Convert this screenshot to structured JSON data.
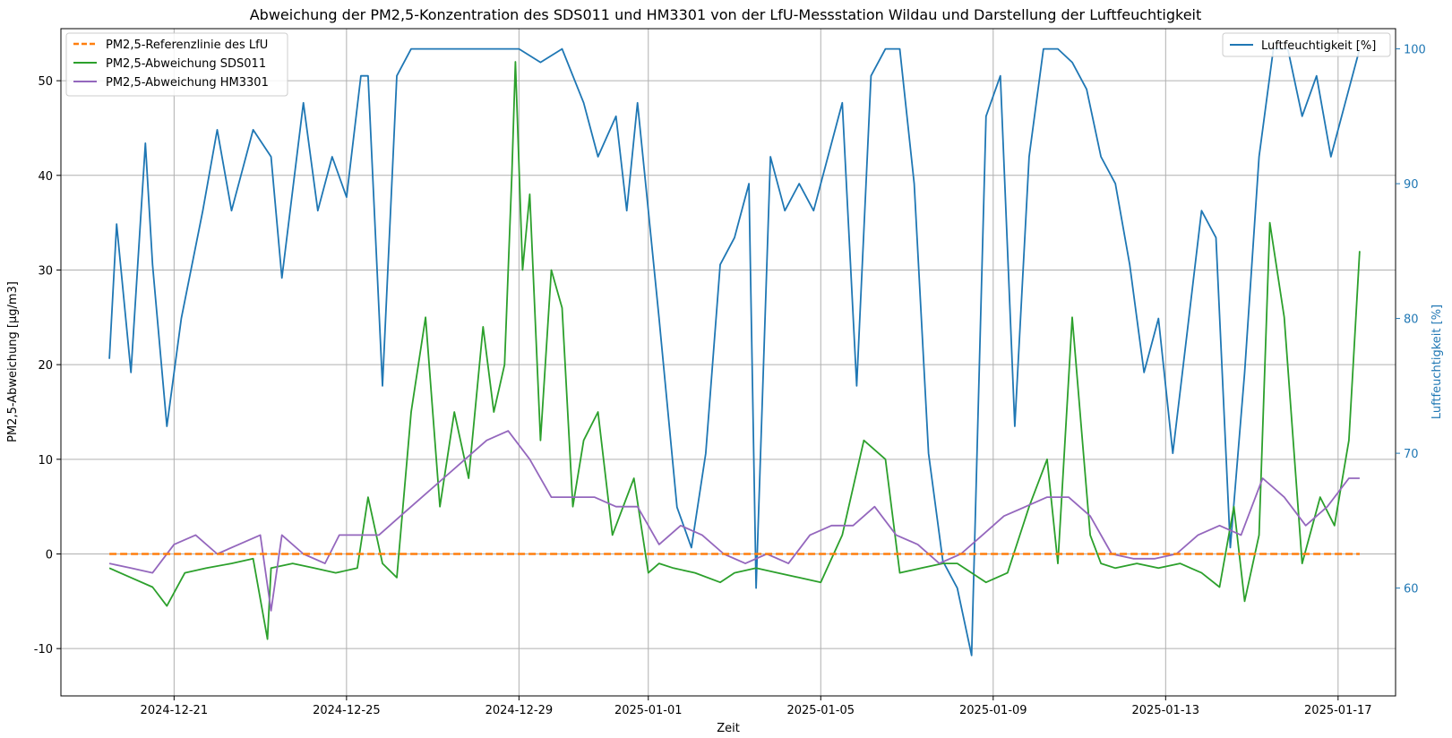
{
  "chart_data": {
    "type": "line",
    "title": "Abweichung der PM2,5-Konzentration des SDS011 und HM3301 von der LfU-Messstation Wildau und Darstellung der Luftfeuchtigkeit",
    "xlabel": "Zeit",
    "ylabel": "PM2,5-Abweichung [µg/m3]",
    "ylabel_right": "Luftfeuchtigkeit [%]",
    "x_ticks": [
      "2024-12-21",
      "2024-12-25",
      "2024-12-29",
      "2025-01-01",
      "2025-01-05",
      "2025-01-09",
      "2025-01-13",
      "2025-01-17"
    ],
    "x_range": [
      "2024-12-18T09:00",
      "2025-01-18T08:00"
    ],
    "y_ticks": [
      -10,
      0,
      10,
      20,
      30,
      40,
      50
    ],
    "ylim": [
      -15,
      55.5
    ],
    "y_ticks_right": [
      60,
      70,
      80,
      90,
      100
    ],
    "ylim_right": [
      52,
      101.5
    ],
    "grid": true,
    "legend_left_position": "upper-left",
    "legend_right_position": "upper-right",
    "colors": {
      "reference": "#ff7f0e",
      "sds011": "#2ca02c",
      "hm3301": "#9467bd",
      "humidity": "#1f77b4",
      "grid": "#b0b0b0"
    },
    "series": [
      {
        "name": "PM2,5-Referenzlinie des LfU",
        "axis": "left",
        "style": "dashed",
        "x": [
          "2024-12-19T12:00",
          "2025-01-17T12:00"
        ],
        "values": [
          0,
          0
        ]
      },
      {
        "name": "PM2,5-Abweichung SDS011",
        "axis": "left",
        "x": [
          "2024-12-19T12:00",
          "2024-12-20T00:00",
          "2024-12-20T12:00",
          "2024-12-20T20:00",
          "2024-12-21T06:00",
          "2024-12-21T18:00",
          "2024-12-22T08:00",
          "2024-12-22T20:00",
          "2024-12-23T04:00",
          "2024-12-23T06:00",
          "2024-12-23T18:00",
          "2024-12-24T06:00",
          "2024-12-24T18:00",
          "2024-12-25T06:00",
          "2024-12-25T12:00",
          "2024-12-25T20:00",
          "2024-12-26T04:00",
          "2024-12-26T12:00",
          "2024-12-26T20:00",
          "2024-12-27T04:00",
          "2024-12-27T12:00",
          "2024-12-27T20:00",
          "2024-12-28T04:00",
          "2024-12-28T10:00",
          "2024-12-28T16:00",
          "2024-12-28T20:00",
          "2024-12-28T22:00",
          "2024-12-29T02:00",
          "2024-12-29T06:00",
          "2024-12-29T12:00",
          "2024-12-29T18:00",
          "2024-12-30T00:00",
          "2024-12-30T06:00",
          "2024-12-30T12:00",
          "2024-12-30T20:00",
          "2024-12-31T04:00",
          "2024-12-31T10:00",
          "2024-12-31T16:00",
          "2025-01-01T00:00",
          "2025-01-01T06:00",
          "2025-01-01T14:00",
          "2025-01-02T02:00",
          "2025-01-02T16:00",
          "2025-01-03T00:00",
          "2025-01-03T12:00",
          "2025-01-04T00:00",
          "2025-01-04T12:00",
          "2025-01-05T00:00",
          "2025-01-05T12:00",
          "2025-01-06T00:00",
          "2025-01-06T12:00",
          "2025-01-06T20:00",
          "2025-01-07T08:00",
          "2025-01-07T20:00",
          "2025-01-08T04:00",
          "2025-01-08T12:00",
          "2025-01-08T20:00",
          "2025-01-09T08:00",
          "2025-01-09T20:00",
          "2025-01-10T06:00",
          "2025-01-10T12:00",
          "2025-01-10T20:00",
          "2025-01-11T06:00",
          "2025-01-11T12:00",
          "2025-01-11T20:00",
          "2025-01-12T08:00",
          "2025-01-12T20:00",
          "2025-01-13T08:00",
          "2025-01-13T20:00",
          "2025-01-14T06:00",
          "2025-01-14T14:00",
          "2025-01-14T20:00",
          "2025-01-15T04:00",
          "2025-01-15T10:00",
          "2025-01-15T18:00",
          "2025-01-16T04:00",
          "2025-01-16T14:00",
          "2025-01-16T22:00",
          "2025-01-17T06:00",
          "2025-01-17T12:00"
        ],
        "values": [
          -1.5,
          -2.5,
          -3.5,
          -5.5,
          -2,
          -1.5,
          -1,
          -0.5,
          -9,
          -1.5,
          -1,
          -1.5,
          -2,
          -1.5,
          6,
          -1,
          -2.5,
          15,
          25,
          5,
          15,
          8,
          24,
          15,
          20,
          40,
          52,
          30,
          38,
          12,
          30,
          26,
          5,
          12,
          15,
          2,
          5,
          8,
          -2,
          -1,
          -1.5,
          -2,
          -3,
          -2,
          -1.5,
          -2,
          -2.5,
          -3,
          2,
          12,
          10,
          -2,
          -1.5,
          -1,
          -1,
          -2,
          -3,
          -2,
          5,
          10,
          -1,
          25,
          2,
          -1,
          -1.5,
          -1,
          -1.5,
          -1,
          -2,
          -3.5,
          5,
          -5,
          2,
          35,
          25,
          -1,
          6,
          3,
          12,
          32
        ]
      },
      {
        "name": "PM2,5-Abweichung HM3301",
        "axis": "left",
        "x": [
          "2024-12-19T12:00",
          "2024-12-20T00:00",
          "2024-12-20T12:00",
          "2024-12-21T00:00",
          "2024-12-21T12:00",
          "2024-12-22T00:00",
          "2024-12-22T12:00",
          "2024-12-23T00:00",
          "2024-12-23T06:00",
          "2024-12-23T12:00",
          "2024-12-24T00:00",
          "2024-12-24T12:00",
          "2024-12-24T20:00",
          "2024-12-25T06:00",
          "2024-12-25T18:00",
          "2024-12-26T06:00",
          "2024-12-26T18:00",
          "2024-12-27T06:00",
          "2024-12-27T18:00",
          "2024-12-28T06:00",
          "2024-12-28T18:00",
          "2024-12-29T06:00",
          "2024-12-29T18:00",
          "2024-12-30T06:00",
          "2024-12-30T18:00",
          "2024-12-31T06:00",
          "2024-12-31T18:00",
          "2025-01-01T00:00",
          "2025-01-01T06:00",
          "2025-01-01T18:00",
          "2025-01-02T06:00",
          "2025-01-02T18:00",
          "2025-01-03T06:00",
          "2025-01-03T18:00",
          "2025-01-04T06:00",
          "2025-01-04T18:00",
          "2025-01-05T06:00",
          "2025-01-05T18:00",
          "2025-01-06T06:00",
          "2025-01-06T18:00",
          "2025-01-07T06:00",
          "2025-01-07T18:00",
          "2025-01-08T06:00",
          "2025-01-08T18:00",
          "2025-01-09T06:00",
          "2025-01-09T18:00",
          "2025-01-10T06:00",
          "2025-01-10T18:00",
          "2025-01-11T06:00",
          "2025-01-11T18:00",
          "2025-01-12T06:00",
          "2025-01-12T18:00",
          "2025-01-13T06:00",
          "2025-01-13T18:00",
          "2025-01-14T06:00",
          "2025-01-14T18:00",
          "2025-01-15T06:00",
          "2025-01-15T18:00",
          "2025-01-16T06:00",
          "2025-01-16T18:00",
          "2025-01-17T06:00",
          "2025-01-17T12:00"
        ],
        "values": [
          -1,
          -1.5,
          -2,
          1,
          2,
          0,
          1,
          2,
          -6,
          2,
          0,
          -1,
          2,
          2,
          2,
          4,
          6,
          8,
          10,
          12,
          13,
          10,
          6,
          6,
          6,
          5,
          5,
          3,
          1,
          3,
          2,
          0,
          -1,
          0,
          -1,
          2,
          3,
          3,
          5,
          2,
          1,
          -1,
          0,
          2,
          4,
          5,
          6,
          6,
          4,
          0,
          -0.5,
          -0.5,
          0,
          2,
          3,
          2,
          8,
          6,
          3,
          5,
          8,
          8
        ]
      },
      {
        "name": "Luftfeuchtigkeit [%]",
        "axis": "right",
        "x": [
          "2024-12-19T12:00",
          "2024-12-19T16:00",
          "2024-12-20T00:00",
          "2024-12-20T08:00",
          "2024-12-20T12:00",
          "2024-12-20T20:00",
          "2024-12-21T04:00",
          "2024-12-21T16:00",
          "2024-12-22T00:00",
          "2024-12-22T08:00",
          "2024-12-22T20:00",
          "2024-12-23T06:00",
          "2024-12-23T12:00",
          "2024-12-24T00:00",
          "2024-12-24T08:00",
          "2024-12-24T16:00",
          "2024-12-25T00:00",
          "2024-12-25T08:00",
          "2024-12-25T12:00",
          "2024-12-25T20:00",
          "2024-12-26T04:00",
          "2024-12-26T12:00",
          "2024-12-27T00:00",
          "2024-12-27T12:00",
          "2024-12-28T00:00",
          "2024-12-28T12:00",
          "2024-12-29T00:00",
          "2024-12-29T12:00",
          "2024-12-30T00:00",
          "2024-12-30T12:00",
          "2024-12-30T20:00",
          "2024-12-31T06:00",
          "2024-12-31T12:00",
          "2024-12-31T18:00",
          "2025-01-01T00:00",
          "2025-01-01T06:00",
          "2025-01-01T16:00",
          "2025-01-02T00:00",
          "2025-01-02T08:00",
          "2025-01-02T16:00",
          "2025-01-03T00:00",
          "2025-01-03T08:00",
          "2025-01-03T12:00",
          "2025-01-03T20:00",
          "2025-01-04T04:00",
          "2025-01-04T12:00",
          "2025-01-04T20:00",
          "2025-01-05T04:00",
          "2025-01-05T12:00",
          "2025-01-05T20:00",
          "2025-01-06T04:00",
          "2025-01-06T12:00",
          "2025-01-06T20:00",
          "2025-01-07T04:00",
          "2025-01-07T12:00",
          "2025-01-07T20:00",
          "2025-01-08T04:00",
          "2025-01-08T12:00",
          "2025-01-08T20:00",
          "2025-01-09T04:00",
          "2025-01-09T12:00",
          "2025-01-09T20:00",
          "2025-01-10T04:00",
          "2025-01-10T12:00",
          "2025-01-10T20:00",
          "2025-01-11T04:00",
          "2025-01-11T12:00",
          "2025-01-11T20:00",
          "2025-01-12T04:00",
          "2025-01-12T12:00",
          "2025-01-12T20:00",
          "2025-01-13T04:00",
          "2025-01-13T12:00",
          "2025-01-13T20:00",
          "2025-01-14T04:00",
          "2025-01-14T12:00",
          "2025-01-14T20:00",
          "2025-01-15T04:00",
          "2025-01-15T12:00",
          "2025-01-15T20:00",
          "2025-01-16T04:00",
          "2025-01-16T12:00",
          "2025-01-16T20:00",
          "2025-01-17T04:00",
          "2025-01-17T12:00"
        ],
        "values": [
          77,
          87,
          76,
          93,
          84,
          72,
          80,
          88,
          94,
          88,
          94,
          92,
          83,
          96,
          88,
          92,
          89,
          98,
          98,
          75,
          98,
          100,
          100,
          100,
          100,
          100,
          100,
          99,
          100,
          96,
          92,
          95,
          88,
          96,
          88,
          80,
          66,
          63,
          70,
          84,
          86,
          90,
          60,
          92,
          88,
          90,
          88,
          92,
          96,
          75,
          98,
          100,
          100,
          90,
          70,
          62,
          60,
          55,
          95,
          98,
          72,
          92,
          100,
          100,
          99,
          97,
          92,
          90,
          84,
          76,
          80,
          70,
          79,
          88,
          86,
          63,
          76,
          92,
          100,
          100,
          95,
          98,
          92,
          96,
          100
        ]
      }
    ]
  }
}
